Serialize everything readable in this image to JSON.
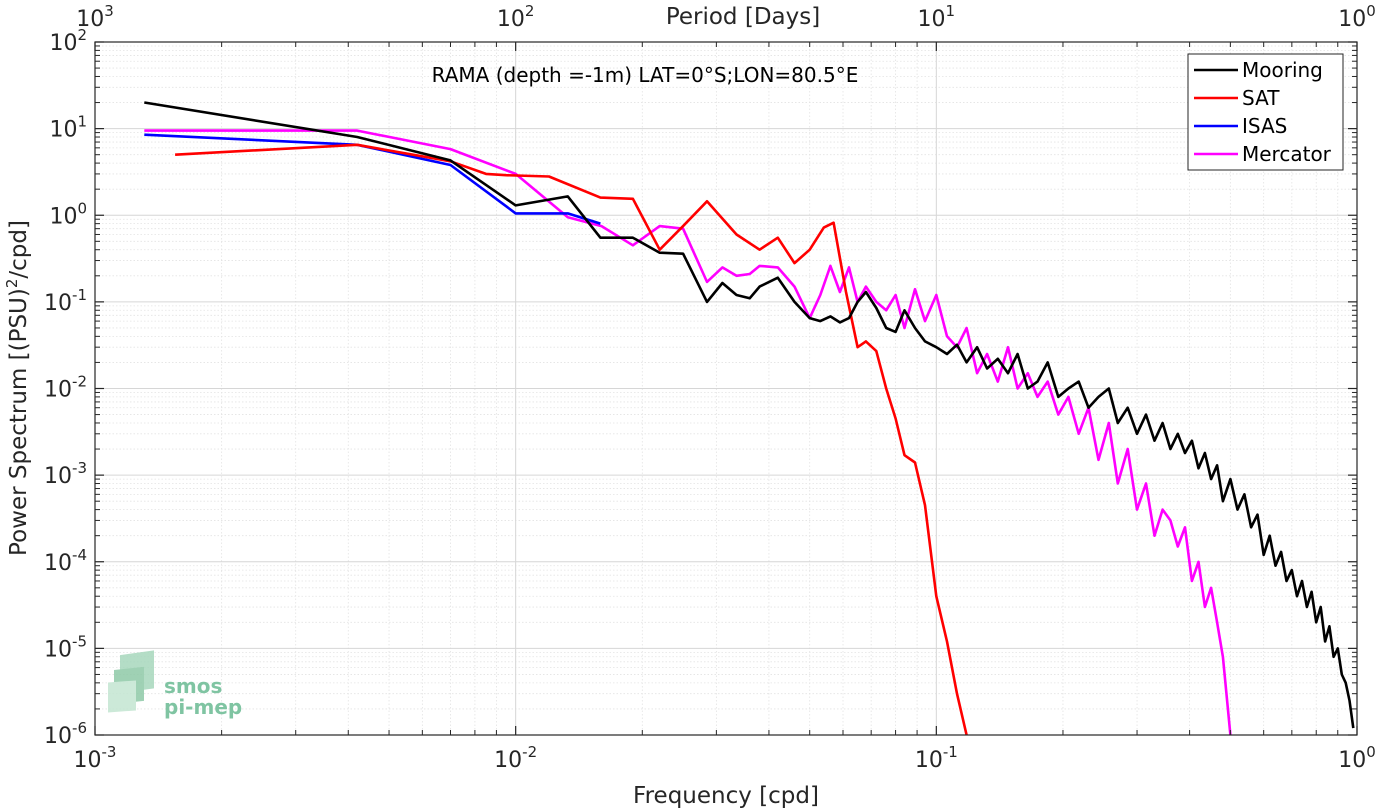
{
  "chart_data": {
    "type": "line",
    "annotation": "RAMA (depth =-1m) LAT=0°S;LON=80.5°E",
    "xlabel": "Frequency [cpd]",
    "ylabel": "Power Spectrum [(PSU)^2/cpd]",
    "ylabel_parts": {
      "pre": "Power Spectrum [(PSU)",
      "sup": "2",
      "post": "/cpd]"
    },
    "top_xlabel": "Period [Days]",
    "xscale": "log",
    "yscale": "log",
    "xlim": [
      0.001,
      1
    ],
    "ylim": [
      1e-06,
      100
    ],
    "grid": true,
    "legend_position": "top-right",
    "x_ticks": [
      {
        "value": 0.001,
        "base": "10",
        "exp": "-3"
      },
      {
        "value": 0.01,
        "base": "10",
        "exp": "-2"
      },
      {
        "value": 0.1,
        "base": "10",
        "exp": "-1"
      },
      {
        "value": 1,
        "base": "10",
        "exp": "0"
      }
    ],
    "y_ticks": [
      {
        "value": 1e-06,
        "base": "10",
        "exp": "-6"
      },
      {
        "value": 1e-05,
        "base": "10",
        "exp": "-5"
      },
      {
        "value": 0.0001,
        "base": "10",
        "exp": "-4"
      },
      {
        "value": 0.001,
        "base": "10",
        "exp": "-3"
      },
      {
        "value": 0.01,
        "base": "10",
        "exp": "-2"
      },
      {
        "value": 0.1,
        "base": "10",
        "exp": "-1"
      },
      {
        "value": 1,
        "base": "10",
        "exp": "0"
      },
      {
        "value": 10,
        "base": "10",
        "exp": "1"
      },
      {
        "value": 100,
        "base": "10",
        "exp": "2"
      }
    ],
    "top_ticks": [
      {
        "period": 1000,
        "base": "10",
        "exp": "3"
      },
      {
        "period": 100,
        "base": "10",
        "exp": "2"
      },
      {
        "period": 10,
        "base": "10",
        "exp": "1"
      },
      {
        "period": 1,
        "base": "10",
        "exp": "0"
      }
    ],
    "series": [
      {
        "name": "Mooring",
        "color": "#000000",
        "x": [
          0.00131,
          0.0042,
          0.007,
          0.01,
          0.0133,
          0.0159,
          0.019,
          0.022,
          0.025,
          0.0285,
          0.031,
          0.0335,
          0.036,
          0.038,
          0.042,
          0.046,
          0.05,
          0.053,
          0.056,
          0.059,
          0.062,
          0.065,
          0.068,
          0.072,
          0.076,
          0.08,
          0.084,
          0.089,
          0.094,
          0.1,
          0.106,
          0.112,
          0.118,
          0.125,
          0.132,
          0.14,
          0.148,
          0.156,
          0.165,
          0.174,
          0.184,
          0.195,
          0.206,
          0.218,
          0.23,
          0.243,
          0.257,
          0.27,
          0.285,
          0.3,
          0.315,
          0.33,
          0.345,
          0.36,
          0.375,
          0.39,
          0.405,
          0.42,
          0.435,
          0.45,
          0.465,
          0.48,
          0.5,
          0.52,
          0.54,
          0.56,
          0.58,
          0.6,
          0.62,
          0.64,
          0.66,
          0.68,
          0.7,
          0.72,
          0.74,
          0.76,
          0.78,
          0.8,
          0.82,
          0.84,
          0.86,
          0.88,
          0.9,
          0.92,
          0.94,
          0.96,
          0.98
        ],
        "y": [
          20,
          8,
          4.3,
          1.3,
          1.65,
          0.55,
          0.55,
          0.37,
          0.36,
          0.1,
          0.165,
          0.12,
          0.11,
          0.15,
          0.19,
          0.1,
          0.065,
          0.06,
          0.068,
          0.058,
          0.065,
          0.1,
          0.13,
          0.085,
          0.05,
          0.045,
          0.08,
          0.05,
          0.035,
          0.03,
          0.025,
          0.032,
          0.02,
          0.03,
          0.017,
          0.022,
          0.015,
          0.025,
          0.01,
          0.012,
          0.02,
          0.008,
          0.01,
          0.012,
          0.006,
          0.008,
          0.01,
          0.004,
          0.006,
          0.003,
          0.005,
          0.0025,
          0.004,
          0.002,
          0.003,
          0.0018,
          0.0025,
          0.0012,
          0.0018,
          0.0009,
          0.0013,
          0.0005,
          0.0009,
          0.0004,
          0.0006,
          0.00025,
          0.00035,
          0.00012,
          0.0002,
          9e-05,
          0.00013,
          6e-05,
          8e-05,
          4e-05,
          6e-05,
          3e-05,
          4.5e-05,
          2e-05,
          3e-05,
          1.2e-05,
          1.8e-05,
          8e-06,
          1e-05,
          5e-06,
          4e-06,
          2.5e-06,
          1.2e-06
        ]
      },
      {
        "name": "SAT",
        "color": "#ff0000",
        "x": [
          0.00155,
          0.0042,
          0.007,
          0.0085,
          0.0095,
          0.012,
          0.0159,
          0.019,
          0.022,
          0.025,
          0.0285,
          0.0335,
          0.038,
          0.042,
          0.046,
          0.05,
          0.054,
          0.057,
          0.061,
          0.065,
          0.068,
          0.072,
          0.076,
          0.08,
          0.084,
          0.089,
          0.094,
          0.1,
          0.106,
          0.112,
          0.118
        ],
        "y": [
          5,
          6.5,
          4.2,
          3,
          2.9,
          2.8,
          1.6,
          1.55,
          0.4,
          0.75,
          1.45,
          0.6,
          0.4,
          0.55,
          0.28,
          0.4,
          0.72,
          0.82,
          0.13,
          0.03,
          0.035,
          0.027,
          0.01,
          0.0045,
          0.0017,
          0.0014,
          0.00045,
          4e-05,
          1.2e-05,
          3e-06,
          1e-06
        ]
      },
      {
        "name": "ISAS",
        "color": "#0000ff",
        "x": [
          0.00131,
          0.0042,
          0.007,
          0.01,
          0.0133,
          0.0159
        ],
        "y": [
          8.5,
          6.5,
          3.8,
          1.05,
          1.05,
          0.8
        ]
      },
      {
        "name": "Mercator",
        "color": "#ff00ff",
        "x": [
          0.00131,
          0.0042,
          0.007,
          0.01,
          0.0133,
          0.016,
          0.019,
          0.022,
          0.025,
          0.0285,
          0.031,
          0.0335,
          0.036,
          0.038,
          0.042,
          0.046,
          0.05,
          0.053,
          0.056,
          0.059,
          0.062,
          0.065,
          0.068,
          0.072,
          0.076,
          0.08,
          0.084,
          0.089,
          0.094,
          0.1,
          0.106,
          0.112,
          0.118,
          0.125,
          0.132,
          0.14,
          0.148,
          0.156,
          0.165,
          0.174,
          0.184,
          0.195,
          0.206,
          0.218,
          0.23,
          0.243,
          0.257,
          0.27,
          0.285,
          0.3,
          0.315,
          0.33,
          0.345,
          0.36,
          0.375,
          0.39,
          0.405,
          0.42,
          0.435,
          0.45,
          0.465,
          0.48,
          0.5
        ],
        "y": [
          9.5,
          9.5,
          5.8,
          3,
          0.95,
          0.75,
          0.45,
          0.75,
          0.7,
          0.17,
          0.25,
          0.2,
          0.21,
          0.26,
          0.25,
          0.15,
          0.065,
          0.12,
          0.26,
          0.13,
          0.25,
          0.1,
          0.15,
          0.1,
          0.08,
          0.12,
          0.05,
          0.14,
          0.06,
          0.12,
          0.04,
          0.03,
          0.05,
          0.015,
          0.025,
          0.012,
          0.03,
          0.01,
          0.015,
          0.008,
          0.012,
          0.005,
          0.008,
          0.003,
          0.006,
          0.0015,
          0.004,
          0.0008,
          0.002,
          0.0004,
          0.0008,
          0.0002,
          0.0004,
          0.0003,
          0.00015,
          0.00025,
          6e-05,
          0.0001,
          3e-05,
          5e-05,
          2e-05,
          8e-06,
          1e-06
        ]
      }
    ]
  },
  "logo": {
    "line1": "smos",
    "line2": "pi-mep",
    "color": "#7fc4a2"
  }
}
